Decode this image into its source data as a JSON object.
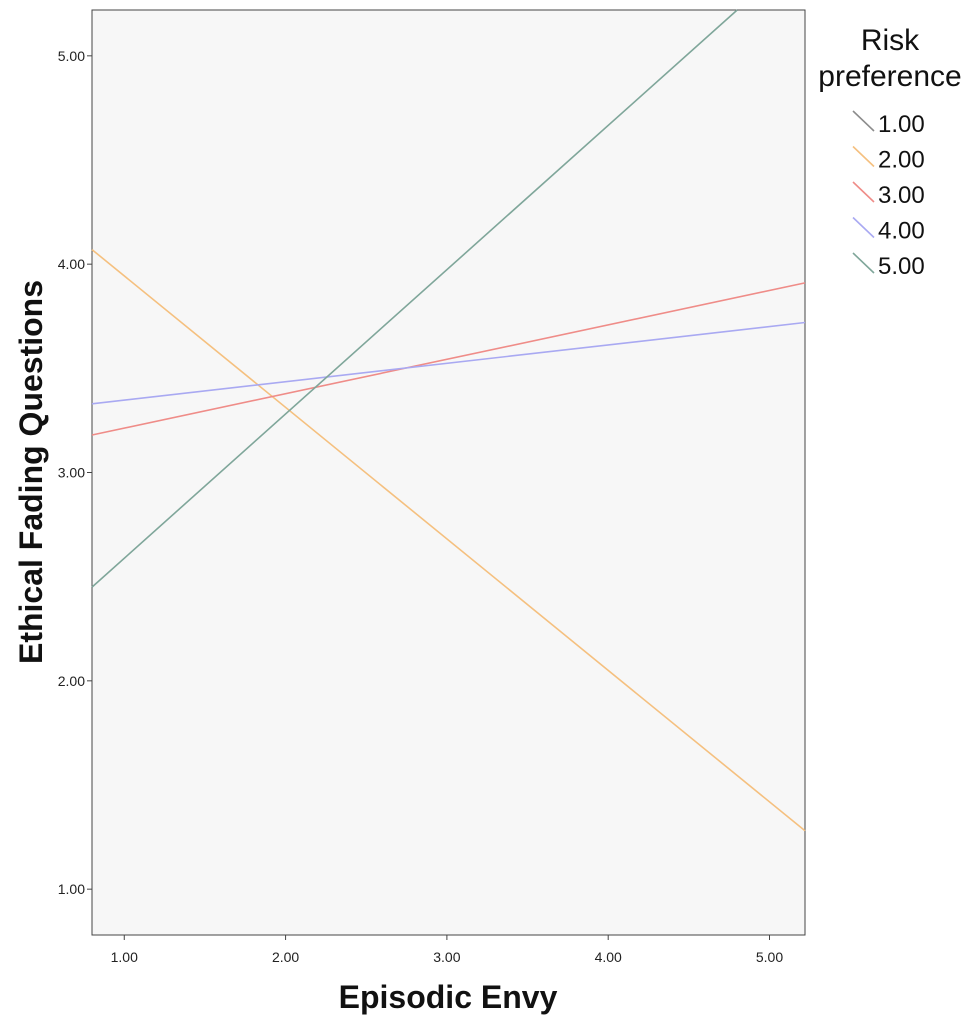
{
  "chart_data": {
    "type": "line",
    "xlabel": "Episodic Envy",
    "ylabel": "Ethical Fading Questions",
    "xlim": [
      0.8,
      5.22
    ],
    "ylim": [
      0.78,
      5.22
    ],
    "x_ticks": [
      "1.00",
      "2.00",
      "3.00",
      "4.00",
      "5.00"
    ],
    "y_ticks": [
      "1.00",
      "2.00",
      "3.00",
      "4.00",
      "5.00"
    ],
    "grid": false,
    "legend": {
      "title": "Risk preference",
      "title_lines": [
        "Risk",
        "preference"
      ],
      "placement": "right"
    },
    "series": [
      {
        "name": "1.00",
        "color": "#8c8c8c",
        "points": []
      },
      {
        "name": "2.00",
        "color": "#f5c07f",
        "points": [
          [
            0.8,
            4.07
          ],
          [
            5.22,
            1.28
          ]
        ]
      },
      {
        "name": "3.00",
        "color": "#ef8c88",
        "points": [
          [
            0.8,
            3.18
          ],
          [
            5.22,
            3.91
          ]
        ]
      },
      {
        "name": "4.00",
        "color": "#a9a9f2",
        "points": [
          [
            0.8,
            3.33
          ],
          [
            5.22,
            3.72
          ]
        ]
      },
      {
        "name": "5.00",
        "color": "#7fa69a",
        "points": [
          [
            0.8,
            2.45
          ],
          [
            4.8,
            5.22
          ]
        ]
      }
    ]
  }
}
